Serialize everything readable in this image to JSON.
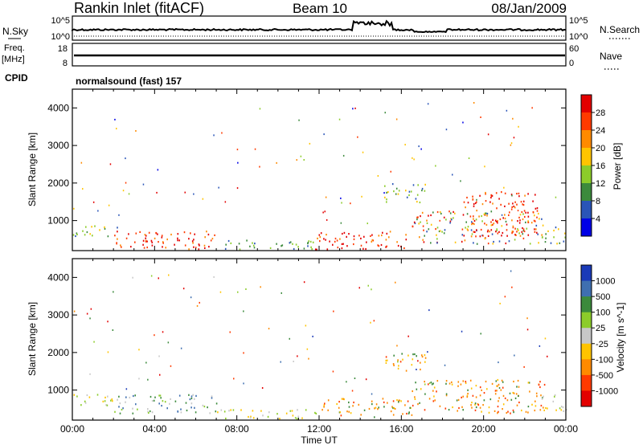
{
  "header": {
    "title": "Rankin Inlet (fitACF)",
    "beam": "Beam 10",
    "date": "08/Jan/2009"
  },
  "status_panels": {
    "nsky_label": "N.Sky",
    "nsky_ticks": [
      "10^5",
      "10^0"
    ],
    "nsearch_label": "N.Search",
    "nsearch_ticks": [
      "10^5",
      "10^0"
    ],
    "freq_label": "Freq.",
    "freq_unit": "[MHz]",
    "freq_ticks": [
      "18",
      "8"
    ],
    "nave_label": "Nave",
    "nave_ticks": [
      "60",
      "0"
    ],
    "cpid_label": "CPID",
    "cpid_value": "normalsound (fast) 157"
  },
  "chart_data": [
    {
      "type": "heatmap",
      "name": "power",
      "ylabel": "Slant Range [km]",
      "ylim": [
        200,
        4500
      ],
      "y_ticks": [
        "4000",
        "3000",
        "2000",
        "1000"
      ],
      "x_ticks": [
        "00:00",
        "04:00",
        "08:00",
        "12:00",
        "16:00",
        "20:00",
        "00:00"
      ],
      "colorbar": {
        "label": "Power [dB]",
        "ticks": [
          "28",
          "24",
          "20",
          "16",
          "12",
          "8",
          "4"
        ],
        "colors": [
          "#e30000",
          "#ff3a00",
          "#ff8a00",
          "#ffc400",
          "#8ccc2a",
          "#3c8a3c",
          "#2a55b8",
          "#0000e6"
        ]
      },
      "regions": [
        {
          "t0": 0.0,
          "t1": 2.2,
          "r0": 600,
          "r1": 900,
          "level": "mid"
        },
        {
          "t0": 2.0,
          "t1": 6.9,
          "r0": 250,
          "r1": 750,
          "level": "high"
        },
        {
          "t0": 3.4,
          "t1": 4.6,
          "r0": 300,
          "r1": 550,
          "level": "high"
        },
        {
          "t0": 7.0,
          "t1": 12.0,
          "r0": 250,
          "r1": 500,
          "level": "low"
        },
        {
          "t0": 11.8,
          "t1": 16.5,
          "r0": 250,
          "r1": 750,
          "level": "high"
        },
        {
          "t0": 15.0,
          "t1": 17.2,
          "r0": 1500,
          "r1": 2000,
          "level": "mid"
        },
        {
          "t0": 16.5,
          "t1": 23.0,
          "r0": 400,
          "r1": 1300,
          "level": "mixed"
        },
        {
          "t0": 19.0,
          "t1": 22.6,
          "r0": 600,
          "r1": 1800,
          "level": "high"
        },
        {
          "t0": 22.8,
          "t1": 24.0,
          "r0": 400,
          "r1": 900,
          "level": "mid"
        }
      ]
    },
    {
      "type": "heatmap",
      "name": "velocity",
      "ylabel": "Slant Range [km]",
      "ylim": [
        200,
        4500
      ],
      "y_ticks": [
        "4000",
        "3000",
        "2000",
        "1000"
      ],
      "x_ticks": [
        "00:00",
        "04:00",
        "08:00",
        "12:00",
        "16:00",
        "20:00",
        "00:00"
      ],
      "xlabel": "Time UT",
      "colorbar": {
        "label": "Velocity [m s^-1]",
        "ticks": [
          "1000",
          "500",
          "100",
          "25",
          "-25",
          "-100",
          "-500",
          "-1000"
        ],
        "colors": [
          "#1a3ab8",
          "#3f6fb0",
          "#3c8a3c",
          "#8ccc2a",
          "#c8c8c8",
          "#ffc400",
          "#ff8a00",
          "#ff3a00",
          "#e30000"
        ]
      },
      "regions": [
        {
          "t0": 0.0,
          "t1": 2.2,
          "r0": 600,
          "r1": 900,
          "level": "neg-small"
        },
        {
          "t0": 2.0,
          "t1": 7.0,
          "r0": 400,
          "r1": 900,
          "level": "pos-small"
        },
        {
          "t0": 7.0,
          "t1": 12.0,
          "r0": 250,
          "r1": 500,
          "level": "neutral"
        },
        {
          "t0": 11.8,
          "t1": 16.5,
          "r0": 300,
          "r1": 800,
          "level": "neg-mid"
        },
        {
          "t0": 15.0,
          "t1": 17.2,
          "r0": 1500,
          "r1": 2000,
          "level": "neg-mid"
        },
        {
          "t0": 16.5,
          "t1": 23.0,
          "r0": 400,
          "r1": 1300,
          "level": "neg-mid"
        },
        {
          "t0": 22.8,
          "t1": 24.0,
          "r0": 400,
          "r1": 900,
          "level": "neutral"
        }
      ]
    }
  ]
}
